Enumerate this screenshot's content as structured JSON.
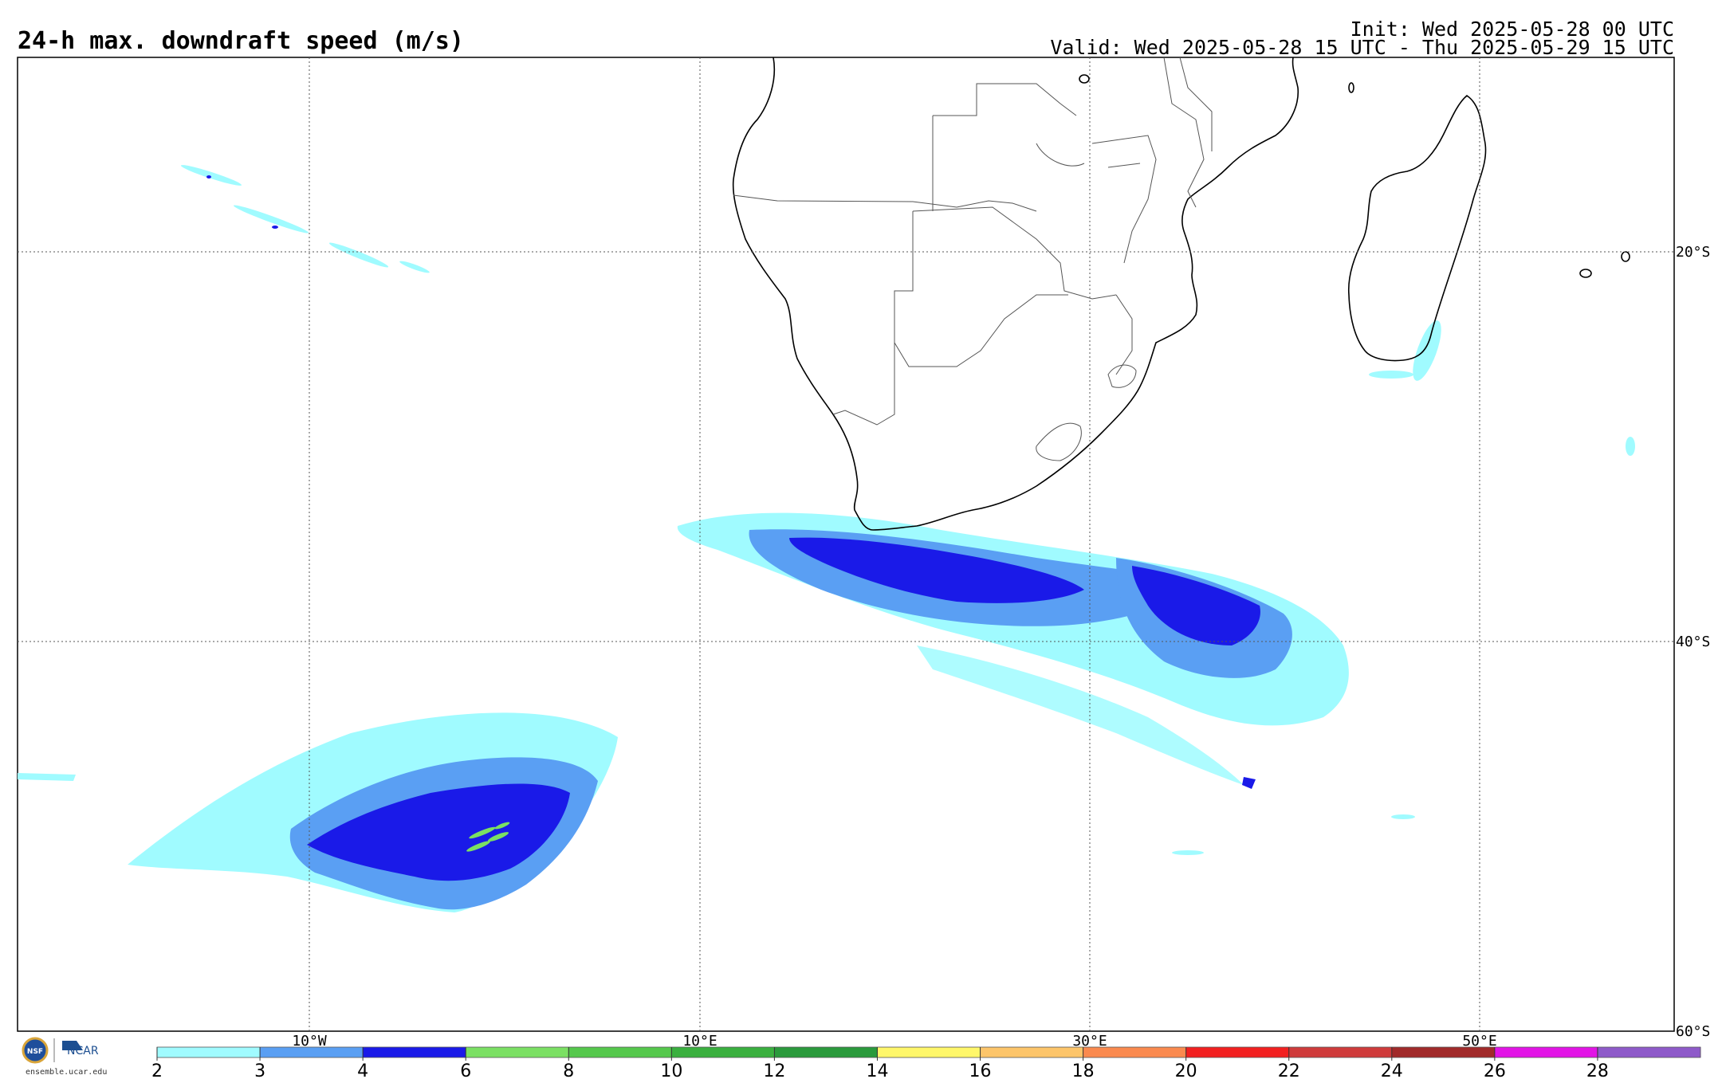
{
  "header": {
    "title": "24-h max. downdraft speed (m/s)",
    "init": "Init: Wed 2025-05-28 00 UTC",
    "valid": "Valid: Wed 2025-05-28 15 UTC - Thu 2025-05-29 15 UTC"
  },
  "map": {
    "lat_labels": [
      "20°S",
      "40°S",
      "60°S"
    ],
    "lon_labels": [
      "10°W",
      "10°E",
      "30°E",
      "50°E"
    ],
    "grid": "dotted",
    "region": "Southern Africa and South Atlantic / Southwest Indian Ocean"
  },
  "legend": {
    "ticks": [
      "2",
      "3",
      "4",
      "6",
      "8",
      "10",
      "12",
      "14",
      "16",
      "18",
      "20",
      "22",
      "24",
      "26",
      "28"
    ],
    "colors": [
      "#a0fbff",
      "#5a9ff3",
      "#1a1ae8",
      "#7be063",
      "#55c84c",
      "#3ab03f",
      "#2a9a3c",
      "#fff76a",
      "#fdc56a",
      "#fa8a4f",
      "#f22020",
      "#cf3b3b",
      "#a12a2a",
      "#e214e6",
      "#8e5ac9"
    ]
  },
  "logos": {
    "nsf": "NSF",
    "ncar": "NCAR",
    "url": "ensemble.ucar.edu"
  }
}
